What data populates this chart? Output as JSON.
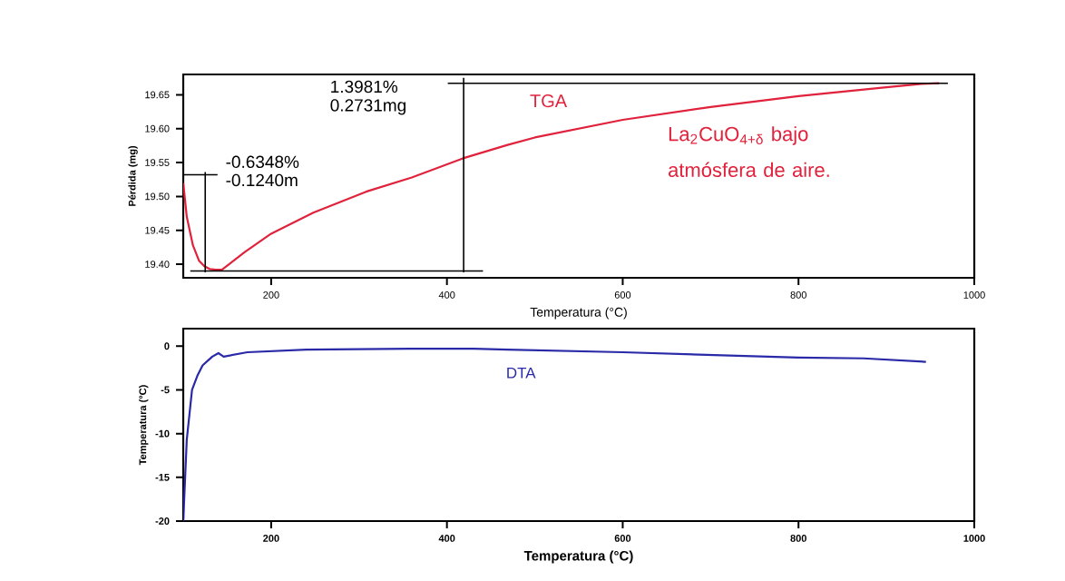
{
  "chart_data": [
    {
      "type": "line",
      "xlabel": "Temperatura (°C)",
      "ylabel": "Pérdida (mg)",
      "xlim": [
        100,
        1000
      ],
      "xticks": [
        200,
        400,
        600,
        800,
        1000
      ],
      "ylim": [
        19.38,
        19.68
      ],
      "yticks": [
        {
          "value": 19.4,
          "label": "19.40"
        },
        {
          "value": 19.45,
          "label": "19.45"
        },
        {
          "value": 19.5,
          "label": "19.50"
        },
        {
          "value": 19.55,
          "label": "19.55"
        },
        {
          "value": 19.6,
          "label": "19.60"
        },
        {
          "value": 19.65,
          "label": "19.65"
        }
      ],
      "marker": "none",
      "line_style": "solid",
      "series": [
        {
          "name": "TGA",
          "color": "#e0223c",
          "x": [
            100,
            104,
            111,
            118,
            124,
            130,
            137,
            144,
            170,
            200,
            248,
            308,
            360,
            420,
            469,
            500,
            600,
            700,
            800,
            900,
            940,
            960
          ],
          "values": [
            19.52,
            19.47,
            19.428,
            19.405,
            19.397,
            19.393,
            19.392,
            19.392,
            19.418,
            19.445,
            19.476,
            19.507,
            19.528,
            19.557,
            19.576,
            19.587,
            19.613,
            19.632,
            19.648,
            19.661,
            19.666,
            19.667
          ]
        },
        {
          "color": "#000000",
          "x": [
            401,
            970
          ],
          "values": [
            19.667,
            19.667
          ]
        },
        {
          "color": "#000000",
          "x": [
            419,
            419
          ],
          "values": [
            19.388,
            19.675
          ]
        },
        {
          "color": "#000000",
          "x": [
            108,
            441
          ],
          "values": [
            19.39,
            19.39
          ]
        },
        {
          "color": "#000000",
          "x": [
            125,
            125
          ],
          "values": [
            19.388,
            19.536
          ]
        },
        {
          "color": "#000000",
          "x": [
            100,
            139
          ],
          "values": [
            19.532,
            19.532
          ]
        }
      ],
      "annotations": [
        "1.3981%",
        "0.2731mg",
        "-0.6348%",
        "-0.1240m",
        "La$_{2}$CuO$_{4+δ}$ bajo atmósfera de aire."
      ]
    },
    {
      "type": "line",
      "xlabel": "Temperatura (°C)",
      "ylabel": "Temperatura (°C)",
      "xlim": [
        100,
        1000
      ],
      "xticks": [
        200,
        400,
        600,
        800,
        1000
      ],
      "ylim": [
        -20,
        2
      ],
      "yticks": [
        -20,
        -15,
        -10,
        -5,
        0
      ],
      "marker": "none",
      "line_style": "solid",
      "series": [
        {
          "name": "DTA",
          "color": "#2a2aa8",
          "x": [
            100,
            104,
            110,
            116,
            122,
            133,
            140,
            146,
            173,
            240,
            358,
            431,
            469,
            600,
            800,
            874,
            945
          ],
          "values": [
            -20,
            -10.7,
            -5,
            -3.4,
            -2.2,
            -1.2,
            -0.8,
            -1.2,
            -0.7,
            -0.4,
            -0.3,
            -0.3,
            -0.4,
            -0.7,
            -1.3,
            -1.4,
            -1.8
          ]
        }
      ]
    }
  ]
}
